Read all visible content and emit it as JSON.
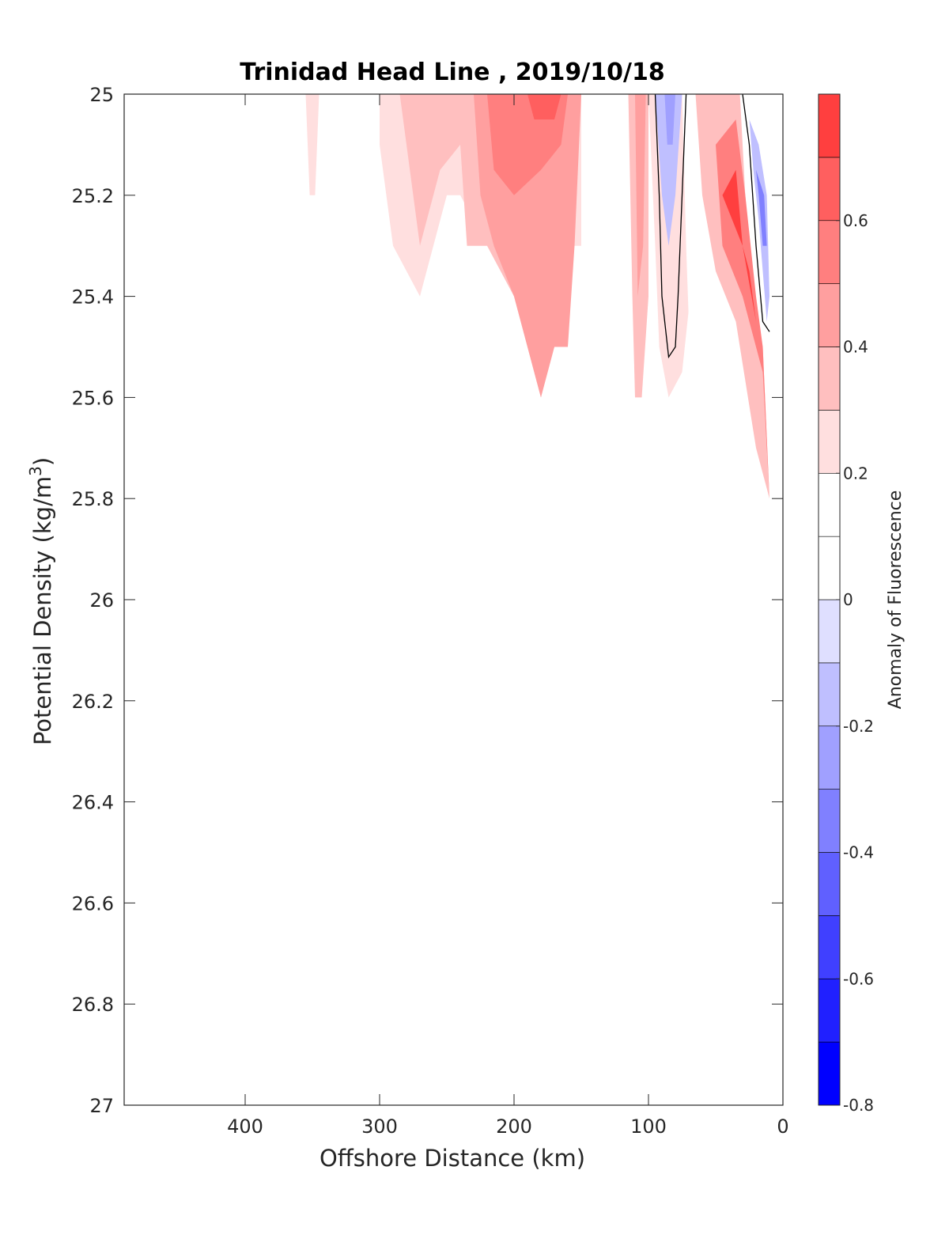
{
  "chart_data": {
    "type": "contour",
    "title": "Trinidad Head Line , 2019/10/18",
    "xlabel": "Offshore Distance (km)",
    "ylabel_main": "Potential Density (kg/m",
    "ylabel_sup": "3",
    "ylabel_tail": ")",
    "colorbar_label": "Anomaly of Fluorescence",
    "x_range": [
      490,
      0
    ],
    "x_reversed": true,
    "y_range": [
      25,
      27
    ],
    "y_reversed": true,
    "x_ticks": [
      400,
      300,
      200,
      100,
      0
    ],
    "x_tick_labels": [
      "400",
      "300",
      "200",
      "100",
      "0"
    ],
    "y_ticks": [
      25,
      25.2,
      25.4,
      25.6,
      25.8,
      26,
      26.2,
      26.4,
      26.6,
      26.8,
      27
    ],
    "y_tick_labels": [
      "25",
      "25.2",
      "25.4",
      "25.6",
      "25.8",
      "26",
      "26.2",
      "26.4",
      "26.6",
      "26.8",
      "27"
    ],
    "colorbar": {
      "range": [
        -0.8,
        0.8
      ],
      "ticks": [
        0.6,
        0.4,
        0.2,
        0,
        -0.2,
        -0.4,
        -0.6,
        -0.8
      ],
      "tick_labels": [
        "0.6",
        "0.4",
        "0.2",
        "0",
        "-0.2",
        "-0.4",
        "-0.6",
        "-0.8"
      ],
      "levels": [
        -0.8,
        -0.7,
        -0.6,
        -0.5,
        -0.4,
        -0.3,
        -0.2,
        -0.1,
        0,
        0.1,
        0.2,
        0.3,
        0.4,
        0.5,
        0.6,
        0.7,
        0.8
      ],
      "colors": [
        "#0000ff",
        "#2020ff",
        "#4040ff",
        "#6060ff",
        "#8080ff",
        "#a0a0ff",
        "#bfbfff",
        "#dfdfff",
        "#ffffff",
        "#ffffff",
        "#ffdfdf",
        "#ffbfbf",
        "#ff9f9f",
        "#ff7f7f",
        "#ff5f5f",
        "#ff3f3f",
        "#ff0000"
      ]
    },
    "regions": [
      {
        "level": 0.15,
        "points": [
          [
            360,
            25.0
          ],
          [
            330,
            25.0
          ],
          [
            330,
            25.1
          ],
          [
            350,
            25.2
          ],
          [
            350,
            25.3
          ],
          [
            360,
            25.2
          ]
        ]
      },
      {
        "level": 0.25,
        "points": [
          [
            355,
            25.0
          ],
          [
            345,
            25.0
          ],
          [
            348,
            25.2
          ],
          [
            352,
            25.2
          ]
        ]
      },
      {
        "level": 0.15,
        "points": [
          [
            315,
            25.0
          ],
          [
            140,
            25.0
          ],
          [
            140,
            25.3
          ],
          [
            150,
            25.4
          ],
          [
            150,
            25.5
          ],
          [
            170,
            25.5
          ],
          [
            180,
            25.6
          ],
          [
            200,
            25.4
          ],
          [
            220,
            25.3
          ],
          [
            240,
            25.2
          ],
          [
            250,
            25.2
          ],
          [
            280,
            25.5
          ],
          [
            290,
            25.5
          ],
          [
            310,
            25.4
          ],
          [
            315,
            25.3
          ]
        ]
      },
      {
        "level": 0.25,
        "points": [
          [
            300,
            25.0
          ],
          [
            150,
            25.0
          ],
          [
            150,
            25.3
          ],
          [
            160,
            25.3
          ],
          [
            160,
            25.5
          ],
          [
            170,
            25.5
          ],
          [
            180,
            25.6
          ],
          [
            200,
            25.4
          ],
          [
            220,
            25.3
          ],
          [
            240,
            25.2
          ],
          [
            250,
            25.2
          ],
          [
            270,
            25.4
          ],
          [
            290,
            25.3
          ],
          [
            300,
            25.1
          ]
        ]
      },
      {
        "level": 0.35,
        "points": [
          [
            285,
            25.0
          ],
          [
            155,
            25.0
          ],
          [
            155,
            25.2
          ],
          [
            165,
            25.3
          ],
          [
            165,
            25.5
          ],
          [
            175,
            25.5
          ],
          [
            180,
            25.6
          ],
          [
            200,
            25.4
          ],
          [
            220,
            25.3
          ],
          [
            235,
            25.3
          ],
          [
            240,
            25.1
          ],
          [
            255,
            25.15
          ],
          [
            270,
            25.3
          ],
          [
            280,
            25.1
          ]
        ]
      },
      {
        "level": 0.45,
        "points": [
          [
            230,
            25.0
          ],
          [
            150,
            25.0
          ],
          [
            155,
            25.3
          ],
          [
            160,
            25.5
          ],
          [
            170,
            25.5
          ],
          [
            180,
            25.6
          ],
          [
            200,
            25.4
          ],
          [
            215,
            25.3
          ],
          [
            225,
            25.2
          ]
        ]
      },
      {
        "level": 0.55,
        "points": [
          [
            220,
            25.0
          ],
          [
            160,
            25.0
          ],
          [
            165,
            25.1
          ],
          [
            180,
            25.15
          ],
          [
            200,
            25.2
          ],
          [
            215,
            25.15
          ]
        ]
      },
      {
        "level": 0.65,
        "points": [
          [
            190,
            25.0
          ],
          [
            165,
            25.0
          ],
          [
            170,
            25.05
          ],
          [
            185,
            25.05
          ]
        ]
      },
      {
        "level": 0.15,
        "points": [
          [
            130,
            25.0
          ],
          [
            95,
            25.0
          ],
          [
            95,
            25.3
          ],
          [
            90,
            25.55
          ],
          [
            85,
            25.65
          ],
          [
            80,
            25.7
          ],
          [
            70,
            25.6
          ],
          [
            60,
            25.3
          ],
          [
            55,
            25.0
          ]
        ]
      },
      {
        "level": 0.25,
        "points": [
          [
            120,
            25.0
          ],
          [
            100,
            25.0
          ],
          [
            95,
            25.3
          ],
          [
            92,
            25.5
          ],
          [
            85,
            25.6
          ],
          [
            75,
            25.55
          ],
          [
            65,
            25.3
          ],
          [
            60,
            25.0
          ]
        ]
      },
      {
        "level": 0.35,
        "points": [
          [
            115,
            25.0
          ],
          [
            100,
            25.0
          ],
          [
            100,
            25.4
          ],
          [
            105,
            25.6
          ],
          [
            110,
            25.6
          ],
          [
            112,
            25.4
          ]
        ]
      },
      {
        "level": 0.45,
        "points": [
          [
            110,
            25.0
          ],
          [
            102,
            25.0
          ],
          [
            104,
            25.3
          ],
          [
            108,
            25.4
          ]
        ]
      },
      {
        "level": -0.15,
        "points": [
          [
            95,
            25.0
          ],
          [
            75,
            25.0
          ],
          [
            80,
            25.2
          ],
          [
            85,
            25.3
          ],
          [
            90,
            25.2
          ]
        ]
      },
      {
        "level": -0.25,
        "points": [
          [
            88,
            25.0
          ],
          [
            80,
            25.0
          ],
          [
            82,
            25.1
          ],
          [
            86,
            25.1
          ]
        ]
      },
      {
        "level": 0.15,
        "points": [
          [
            75,
            25.0
          ],
          [
            30,
            25.0
          ],
          [
            25,
            25.1
          ],
          [
            20,
            25.3
          ],
          [
            15,
            25.5
          ],
          [
            10,
            25.8
          ],
          [
            20,
            25.6
          ],
          [
            45,
            25.35
          ],
          [
            60,
            25.4
          ],
          [
            68,
            25.6
          ],
          [
            72,
            25.3
          ]
        ]
      },
      {
        "level": 0.35,
        "points": [
          [
            65,
            25.0
          ],
          [
            32,
            25.0
          ],
          [
            28,
            25.2
          ],
          [
            22,
            25.4
          ],
          [
            15,
            25.5
          ],
          [
            10,
            25.8
          ],
          [
            20,
            25.7
          ],
          [
            35,
            25.45
          ],
          [
            50,
            25.35
          ],
          [
            60,
            25.2
          ]
        ]
      },
      {
        "level": 0.55,
        "points": [
          [
            50,
            25.1
          ],
          [
            35,
            25.05
          ],
          [
            28,
            25.2
          ],
          [
            20,
            25.4
          ],
          [
            15,
            25.5
          ],
          [
            10,
            25.8
          ],
          [
            15,
            25.55
          ],
          [
            30,
            25.4
          ],
          [
            45,
            25.3
          ]
        ]
      },
      {
        "level": 0.75,
        "points": [
          [
            45,
            25.2
          ],
          [
            35,
            25.15
          ],
          [
            30,
            25.3
          ],
          [
            25,
            25.35
          ],
          [
            20,
            25.45
          ],
          [
            30,
            25.3
          ]
        ]
      },
      {
        "level": -0.15,
        "points": [
          [
            25,
            25.05
          ],
          [
            18,
            25.1
          ],
          [
            12,
            25.2
          ],
          [
            10,
            25.4
          ],
          [
            12,
            25.45
          ],
          [
            18,
            25.25
          ],
          [
            22,
            25.15
          ]
        ]
      },
      {
        "level": -0.35,
        "points": [
          [
            20,
            25.15
          ],
          [
            14,
            25.2
          ],
          [
            12,
            25.3
          ],
          [
            15,
            25.3
          ],
          [
            18,
            25.2
          ]
        ]
      }
    ],
    "zero_contours": [
      [
        [
          95,
          25.0
        ],
        [
          92,
          25.2
        ],
        [
          90,
          25.4
        ],
        [
          85,
          25.52
        ],
        [
          80,
          25.5
        ],
        [
          78,
          25.4
        ],
        [
          75,
          25.2
        ],
        [
          72,
          25.0
        ]
      ],
      [
        [
          30,
          25.0
        ],
        [
          25,
          25.1
        ],
        [
          20,
          25.3
        ],
        [
          15,
          25.45
        ],
        [
          10,
          25.47
        ]
      ]
    ]
  }
}
